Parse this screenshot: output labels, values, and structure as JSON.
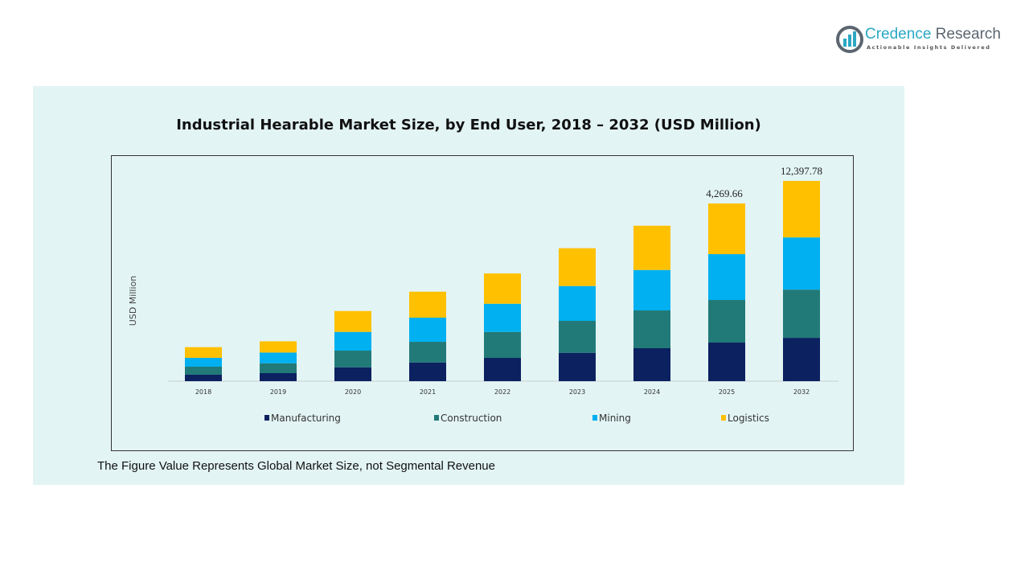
{
  "logo": {
    "brand_a": "Credence",
    "brand_b": "Research",
    "tagline": "Actionable Insights Delivered"
  },
  "footnote": "The Figure Value Represents Global Market Size, not Segmental Revenue",
  "colors": {
    "panel_bg": "#e3f4f4",
    "Manufacturing": "#0b2160",
    "Construction": "#217a78",
    "Mining": "#00b0f0",
    "Logistics": "#ffc000"
  },
  "chart_data": {
    "type": "bar",
    "stacked": true,
    "title": "Industrial Hearable Market Size, by End User, 2018 – 2032 (USD Million)",
    "xlabel": "",
    "ylabel": "USD Million",
    "grid": false,
    "legend": "bottom",
    "categories": [
      "2018",
      "2019",
      "2020",
      "2021",
      "2022",
      "2023",
      "2024",
      "2025",
      "2032"
    ],
    "series": [
      {
        "name": "Manufacturing",
        "values": [
          155,
          193,
          334,
          450,
          560,
          682,
          792,
          927,
          2685
        ]
      },
      {
        "name": "Construction",
        "values": [
          193,
          238,
          400,
          496,
          624,
          767,
          908,
          1024,
          2984
        ]
      },
      {
        "name": "Mining",
        "values": [
          213,
          257,
          450,
          580,
          676,
          837,
          972,
          1101,
          3233
        ]
      },
      {
        "name": "Logistics",
        "values": [
          257,
          270,
          502,
          624,
          728,
          908,
          1063,
          1218,
          3496
        ]
      }
    ],
    "data_labels": [
      {
        "category": "2025",
        "text": "4,269.66"
      },
      {
        "category": "2032",
        "text": "12,397.78"
      }
    ]
  }
}
